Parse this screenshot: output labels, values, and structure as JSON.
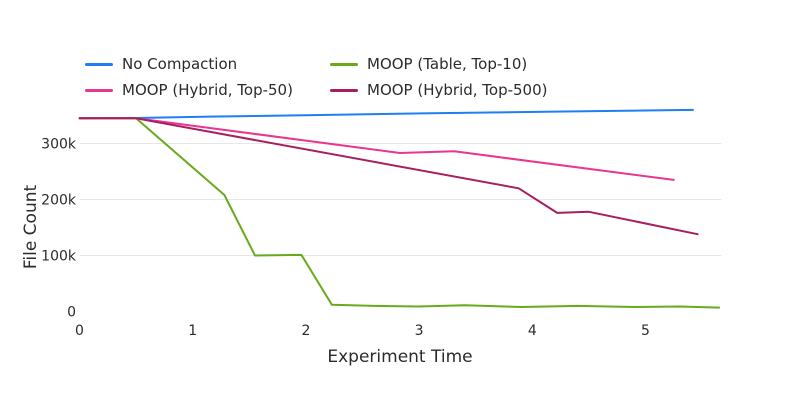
{
  "page": {
    "background": "#ffffff",
    "text_color": "#2b2b2b",
    "gridline_color": "#e7e7e7"
  },
  "axes": {
    "x_title": "Experiment Time",
    "y_title": "File Count",
    "x_tick_labels": [
      "0",
      "1",
      "2",
      "3",
      "4",
      "5"
    ],
    "y_tick_labels": [
      "0",
      "100k",
      "200k",
      "300k"
    ]
  },
  "chart_data": {
    "type": "line",
    "title": "",
    "xlabel": "Experiment Time",
    "ylabel": "File Count",
    "xlim": [
      0,
      5.67
    ],
    "ylim": [
      0,
      370000
    ],
    "x_tick_values": [
      0,
      1,
      2,
      3,
      4,
      5
    ],
    "y_tick_values": [
      0,
      100000,
      200000,
      300000
    ],
    "y_tick_labels": [
      "0",
      "100k",
      "200k",
      "300k"
    ],
    "grid": "horizontal-only",
    "legend_position": "top",
    "series": [
      {
        "name": "No Compaction",
        "color": "#1d7ff2",
        "points": [
          [
            0,
            345000
          ],
          [
            0.5,
            345500
          ],
          [
            1.15,
            348000
          ],
          [
            2,
            350500
          ],
          [
            3.1,
            354000
          ],
          [
            4.2,
            357000
          ],
          [
            5.42,
            360000
          ]
        ]
      },
      {
        "name": "MOOP (Table, Top-10)",
        "color": "#69aa1d",
        "points": [
          [
            0,
            345000
          ],
          [
            0.5,
            345000
          ],
          [
            1.28,
            208000
          ],
          [
            1.55,
            100000
          ],
          [
            1.96,
            101000
          ],
          [
            2.23,
            12000
          ],
          [
            2.6,
            10000
          ],
          [
            3.0,
            9000
          ],
          [
            3.4,
            11000
          ],
          [
            3.9,
            8000
          ],
          [
            4.4,
            10000
          ],
          [
            4.9,
            8000
          ],
          [
            5.3,
            9000
          ],
          [
            5.65,
            7000
          ]
        ]
      },
      {
        "name": "MOOP (Hybrid, Top-50)",
        "color": "#e9368f",
        "points": [
          [
            0,
            345000
          ],
          [
            0.5,
            345000
          ],
          [
            2.83,
            283000
          ],
          [
            3.31,
            286000
          ],
          [
            5.25,
            235000
          ]
        ]
      },
      {
        "name": "MOOP (Hybrid, Top-500)",
        "color": "#a81e61",
        "points": [
          [
            0,
            345000
          ],
          [
            0.5,
            345000
          ],
          [
            3.88,
            220000
          ],
          [
            4.22,
            176000
          ],
          [
            4.5,
            178000
          ],
          [
            5.46,
            138000
          ]
        ]
      }
    ]
  }
}
